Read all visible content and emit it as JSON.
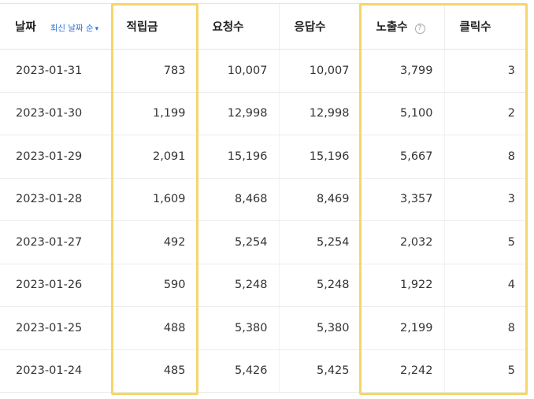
{
  "table": {
    "headers": {
      "date": "날짜",
      "sort_label": "최신 날짜 순",
      "reward": "적립금",
      "requests": "요청수",
      "responses": "응답수",
      "impressions": "노출수",
      "clicks": "클릭수"
    },
    "help_glyph": "?",
    "rows": [
      {
        "date": "2023-01-31",
        "reward": "783",
        "requests": "10,007",
        "responses": "10,007",
        "impressions": "3,799",
        "clicks": "3"
      },
      {
        "date": "2023-01-30",
        "reward": "1,199",
        "requests": "12,998",
        "responses": "12,998",
        "impressions": "5,100",
        "clicks": "2"
      },
      {
        "date": "2023-01-29",
        "reward": "2,091",
        "requests": "15,196",
        "responses": "15,196",
        "impressions": "5,667",
        "clicks": "8"
      },
      {
        "date": "2023-01-28",
        "reward": "1,609",
        "requests": "8,468",
        "responses": "8,469",
        "impressions": "3,357",
        "clicks": "3"
      },
      {
        "date": "2023-01-27",
        "reward": "492",
        "requests": "5,254",
        "responses": "5,254",
        "impressions": "2,032",
        "clicks": "5"
      },
      {
        "date": "2023-01-26",
        "reward": "590",
        "requests": "5,248",
        "responses": "5,248",
        "impressions": "1,922",
        "clicks": "4"
      },
      {
        "date": "2023-01-25",
        "reward": "488",
        "requests": "5,380",
        "responses": "5,380",
        "impressions": "2,199",
        "clicks": "8"
      },
      {
        "date": "2023-01-24",
        "reward": "485",
        "requests": "5,426",
        "responses": "5,425",
        "impressions": "2,242",
        "clicks": "5"
      }
    ]
  },
  "colors": {
    "highlight": "#f6d66b",
    "sort_link": "#2f6fde"
  }
}
